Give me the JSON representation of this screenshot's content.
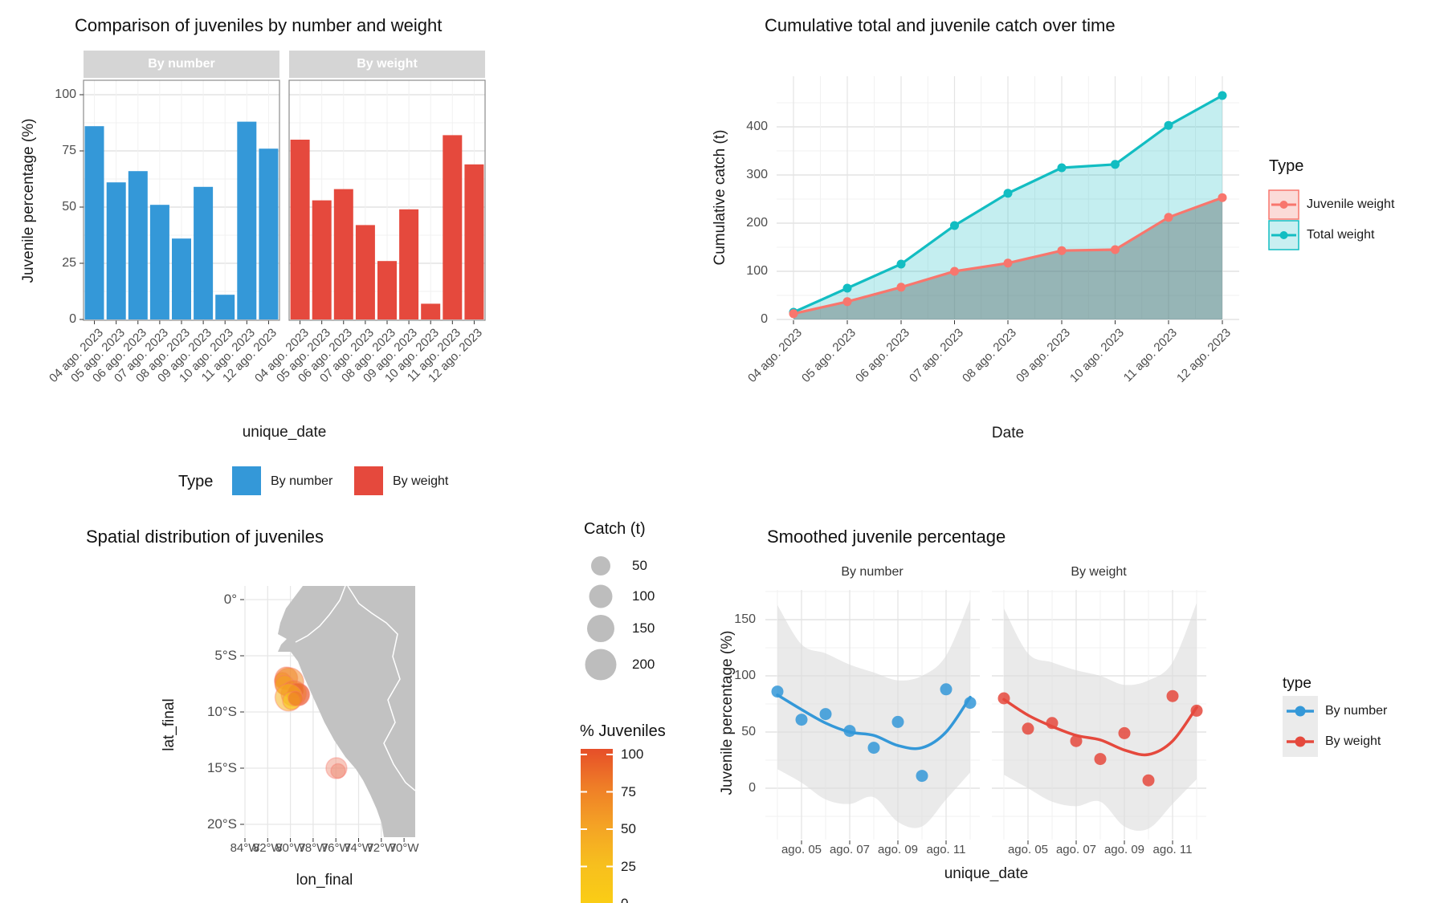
{
  "colors": {
    "blue": "#3498D8",
    "red": "#E5493D",
    "teal": "#12BDC2",
    "salmon": "#F8766D",
    "teal_fill": "rgba(18,189,194,0.25)",
    "juvenile_fill": "rgba(95,110,110,0.45)",
    "strip_bg": "#D5D5D5",
    "strip_text": "#FFFFFF",
    "land": "#C2C2C2",
    "grid_major": "#E4E4E4",
    "grid_minor": "#F1F1F1",
    "ribbon": "#DCDCDC",
    "panel_border": "#8C8C8C",
    "tick_mark": "#333333",
    "axis_text": "#4D4D4D",
    "size_legend_circle": "#BDBDBD",
    "juv_key_fill": "#FBDBD8",
    "total_key_fill": "#C9EFF1",
    "legend_key_bg": "#EBEBEB"
  },
  "chart_data": [
    {
      "id": "bars",
      "type": "bar",
      "title": "Comparison of juveniles by number and weight",
      "facets": [
        "By number",
        "By weight"
      ],
      "categories": [
        "04 ago. 2023",
        "05 ago. 2023",
        "06 ago. 2023",
        "07 ago. 2023",
        "08 ago. 2023",
        "09 ago. 2023",
        "10 ago. 2023",
        "11 ago. 2023",
        "12 ago. 2023"
      ],
      "series": [
        {
          "name": "By number",
          "values": [
            86,
            61,
            66,
            51,
            36,
            59,
            11,
            88,
            76
          ]
        },
        {
          "name": "By weight",
          "values": [
            80,
            53,
            58,
            42,
            26,
            49,
            7,
            82,
            69
          ]
        }
      ],
      "ylabel": "Juvenile percentage (%)",
      "xlabel": "unique_date",
      "yticks": [
        0,
        25,
        50,
        75,
        100
      ],
      "ylim": [
        0,
        107
      ],
      "legend": {
        "title": "Type",
        "items": [
          "By number",
          "By weight"
        ]
      }
    },
    {
      "id": "cumulative",
      "type": "area",
      "title": "Cumulative total and juvenile catch over time",
      "x": [
        "04 ago. 2023",
        "05 ago. 2023",
        "06 ago. 2023",
        "07 ago. 2023",
        "08 ago. 2023",
        "09 ago. 2023",
        "10 ago. 2023",
        "11 ago. 2023",
        "12 ago. 2023"
      ],
      "series": [
        {
          "name": "Total weight",
          "values": [
            15,
            65,
            115,
            195,
            262,
            315,
            322,
            403,
            465
          ]
        },
        {
          "name": "Juvenile weight",
          "values": [
            12,
            37,
            67,
            100,
            117,
            143,
            145,
            212,
            253
          ]
        }
      ],
      "ylabel": "Cumulative catch (t)",
      "xlabel": "Date",
      "yticks": [
        0,
        100,
        200,
        300,
        400
      ],
      "legend": {
        "title": "Type",
        "items": [
          "Juvenile weight",
          "Total weight"
        ]
      }
    },
    {
      "id": "map",
      "type": "scatter",
      "title": "Spatial distribution of juveniles",
      "xlabel": "lon_final",
      "ylabel": "lat_final",
      "xticks": [
        "84°W",
        "82°W",
        "80°W",
        "78°W",
        "76°W",
        "74°W",
        "72°W",
        "70°W"
      ],
      "yticks": [
        "0°",
        "5°S",
        "10°S",
        "15°S",
        "20°S"
      ],
      "points": [
        {
          "lon": -80.35,
          "lat": -7.0,
          "r": 14,
          "color": "#F0862B",
          "opacity": 0.55
        },
        {
          "lon": -80.7,
          "lat": -7.2,
          "r": 10,
          "color": "#F49C22",
          "opacity": 0.55
        },
        {
          "lon": -80.1,
          "lat": -7.35,
          "r": 18,
          "color": "#F08A28",
          "opacity": 0.55
        },
        {
          "lon": -80.5,
          "lat": -7.6,
          "r": 12,
          "color": "#F4A01F",
          "opacity": 0.5
        },
        {
          "lon": -79.5,
          "lat": -8.1,
          "r": 9,
          "color": "#EC6F2B",
          "opacity": 0.65
        },
        {
          "lon": -79.3,
          "lat": -8.45,
          "r": 14,
          "color": "#E75A2E",
          "opacity": 0.7
        },
        {
          "lon": -79.7,
          "lat": -8.35,
          "r": 16,
          "color": "#EE7A28",
          "opacity": 0.5
        },
        {
          "lon": -80.15,
          "lat": -8.7,
          "r": 17,
          "color": "#F6B31D",
          "opacity": 0.55
        },
        {
          "lon": -79.9,
          "lat": -9.0,
          "r": 11,
          "color": "#F8C51B",
          "opacity": 0.6
        },
        {
          "lon": -79.55,
          "lat": -8.8,
          "r": 9,
          "color": "#ED7428",
          "opacity": 0.6
        },
        {
          "lon": -75.95,
          "lat": -15.0,
          "r": 13,
          "color": "#F0947E",
          "opacity": 0.5
        },
        {
          "lon": -75.8,
          "lat": -15.25,
          "r": 9,
          "color": "#EE8C74",
          "opacity": 0.5
        }
      ],
      "size_legend": {
        "title": "Catch (t)",
        "sizes": [
          50,
          100,
          150,
          200
        ]
      },
      "color_legend": {
        "title": "% Juveniles",
        "ticks": [
          100,
          75,
          50,
          25,
          0
        ],
        "gradient": [
          "#E64E29",
          "#EF7E27",
          "#F4A325",
          "#F7BF1E",
          "#FACD15"
        ]
      }
    },
    {
      "id": "smooth",
      "type": "scatter",
      "title": "Smoothed juvenile percentage",
      "facets": [
        "By number",
        "By weight"
      ],
      "xticklabels": [
        "ago. 05",
        "ago. 07",
        "ago. 09",
        "ago. 11"
      ],
      "ylabel": "Juvenile percentage (%)",
      "xlabel": "unique_date",
      "yticks": [
        0,
        50,
        100,
        150
      ],
      "series": [
        {
          "name": "By number",
          "points": [
            86,
            61,
            66,
            51,
            36,
            59,
            11,
            88,
            76
          ],
          "smooth": [
            83,
            70,
            58,
            50,
            47,
            38,
            36,
            50,
            81
          ],
          "ribbon_upper": [
            163,
            128,
            120,
            110,
            103,
            96,
            100,
            118,
            168
          ],
          "ribbon_lower": [
            17,
            5,
            -10,
            -14,
            -8,
            -30,
            -34,
            -10,
            14
          ]
        },
        {
          "name": "By weight",
          "points": [
            80,
            53,
            58,
            42,
            26,
            49,
            7,
            82,
            69
          ],
          "smooth": [
            79,
            65,
            55,
            47,
            43,
            34,
            30,
            42,
            72
          ],
          "ribbon_upper": [
            160,
            120,
            112,
            105,
            100,
            92,
            96,
            112,
            165
          ],
          "ribbon_lower": [
            12,
            0,
            -12,
            -16,
            -12,
            -34,
            -36,
            -14,
            8
          ]
        }
      ],
      "legend": {
        "title": "type",
        "items": [
          "By number",
          "By weight"
        ]
      }
    }
  ]
}
